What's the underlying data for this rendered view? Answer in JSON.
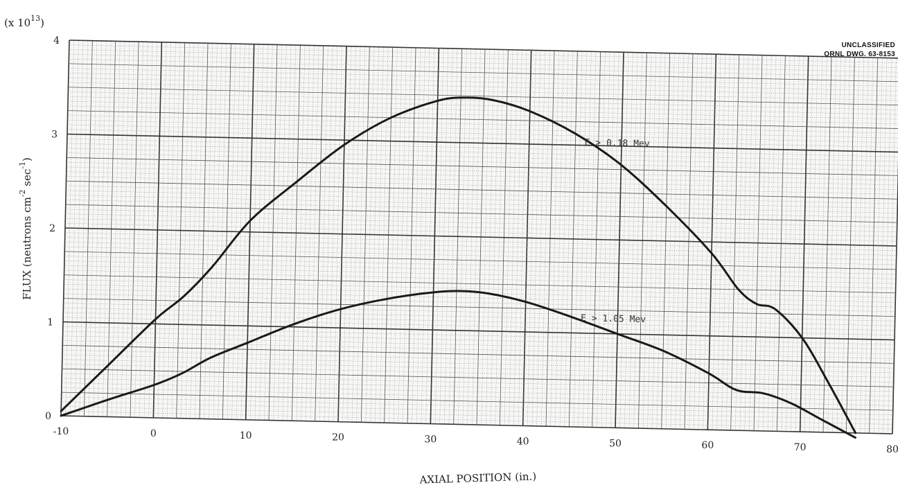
{
  "header": {
    "classification": "UNCLASSIFIED",
    "drawing_number": "ORNL DWG. 63-8153",
    "scale_prefix": "(x 10",
    "scale_exponent": "13",
    "scale_suffix": ")"
  },
  "chart_data": {
    "type": "line",
    "xlabel": "AXIAL POSITION (in.)",
    "ylabel": "FLUX (neutrons cm-2 sec-1)",
    "ylabel_parts": {
      "prefix": "FLUX (neutrons cm",
      "exp1": "-2",
      "mid": " sec",
      "exp2": "-1",
      "suffix": ")"
    },
    "xlim": [
      -10,
      80
    ],
    "ylim": [
      0,
      4
    ],
    "x_ticks": [
      "-10",
      "0",
      "10",
      "20",
      "30",
      "40",
      "50",
      "60",
      "70",
      "80"
    ],
    "y_ticks": [
      "0",
      "1",
      "2",
      "3",
      "4"
    ],
    "grid": true,
    "series": [
      {
        "name": "E > 0.18 Mev",
        "color": "#1a1a1a",
        "points": [
          [
            -10,
            0.05
          ],
          [
            -5,
            0.55
          ],
          [
            0,
            1.05
          ],
          [
            3,
            1.3
          ],
          [
            6,
            1.62
          ],
          [
            10,
            2.12
          ],
          [
            15,
            2.55
          ],
          [
            20,
            2.95
          ],
          [
            25,
            3.25
          ],
          [
            30,
            3.44
          ],
          [
            33,
            3.48
          ],
          [
            36,
            3.46
          ],
          [
            40,
            3.35
          ],
          [
            45,
            3.12
          ],
          [
            50,
            2.8
          ],
          [
            55,
            2.37
          ],
          [
            60,
            1.88
          ],
          [
            63,
            1.5
          ],
          [
            65,
            1.35
          ],
          [
            67,
            1.3
          ],
          [
            70,
            1.0
          ],
          [
            73,
            0.52
          ],
          [
            76,
            0.0
          ]
        ]
      },
      {
        "name": "E > 1.05 Mev",
        "color": "#1a1a1a",
        "points": [
          [
            -10,
            0.0
          ],
          [
            -5,
            0.18
          ],
          [
            0,
            0.35
          ],
          [
            3,
            0.48
          ],
          [
            6,
            0.65
          ],
          [
            10,
            0.82
          ],
          [
            15,
            1.03
          ],
          [
            20,
            1.2
          ],
          [
            25,
            1.32
          ],
          [
            30,
            1.4
          ],
          [
            33,
            1.42
          ],
          [
            36,
            1.4
          ],
          [
            40,
            1.32
          ],
          [
            45,
            1.17
          ],
          [
            50,
            1.0
          ],
          [
            55,
            0.83
          ],
          [
            60,
            0.6
          ],
          [
            63,
            0.43
          ],
          [
            66,
            0.4
          ],
          [
            69,
            0.3
          ],
          [
            72,
            0.15
          ],
          [
            76,
            -0.05
          ]
        ]
      }
    ]
  }
}
